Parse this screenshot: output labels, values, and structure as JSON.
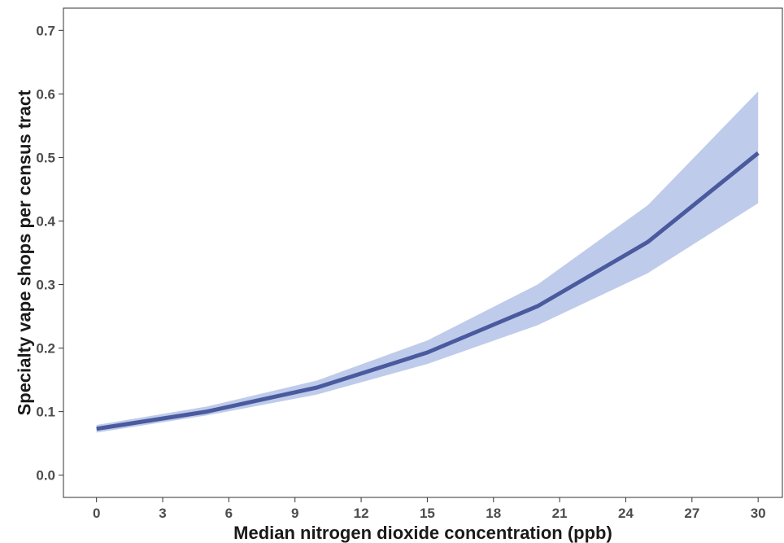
{
  "chart_data": {
    "type": "line",
    "title": "",
    "xlabel": "Median nitrogen dioxide concentration (ppb)",
    "ylabel": "Specialty vape shops per census tract",
    "xlim": [
      -1.5,
      31.1
    ],
    "ylim": [
      -0.035,
      0.735
    ],
    "x_ticks": [
      0,
      3,
      6,
      9,
      12,
      15,
      18,
      21,
      24,
      27,
      30
    ],
    "x_tick_labels": [
      "0",
      "3",
      "6",
      "9",
      "12",
      "15",
      "18",
      "21",
      "24",
      "27",
      "30"
    ],
    "y_ticks": [
      0.0,
      0.1,
      0.2,
      0.3,
      0.4,
      0.5,
      0.6,
      0.7
    ],
    "y_tick_labels": [
      "0.0",
      "0.1",
      "0.2",
      "0.3",
      "0.4",
      "0.5",
      "0.6",
      "0.7"
    ],
    "grid": false,
    "series": [
      {
        "x": [
          0,
          5,
          10,
          15,
          20,
          25,
          30
        ],
        "y": [
          0.073,
          0.1,
          0.138,
          0.193,
          0.266,
          0.367,
          0.507
        ],
        "lower": [
          0.067,
          0.094,
          0.127,
          0.175,
          0.236,
          0.318,
          0.428
        ],
        "upper": [
          0.079,
          0.108,
          0.149,
          0.212,
          0.3,
          0.425,
          0.604
        ],
        "color": "#4a5a9e",
        "band_color": "#bfcbea"
      }
    ]
  }
}
